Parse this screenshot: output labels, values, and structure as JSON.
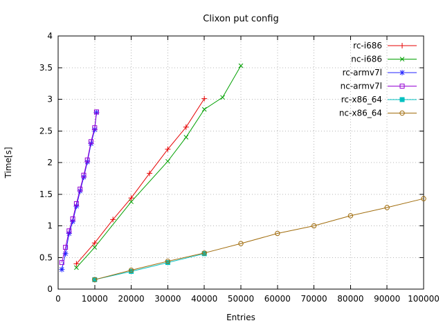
{
  "chart_data": {
    "type": "line",
    "title": "Clixon put config",
    "xlabel": "Entries",
    "ylabel": "Time[s]",
    "xlim": [
      0,
      100000
    ],
    "ylim": [
      0,
      4
    ],
    "x_ticks": [
      0,
      10000,
      20000,
      30000,
      40000,
      50000,
      60000,
      70000,
      80000,
      90000,
      100000
    ],
    "y_ticks": [
      0,
      0.5,
      1,
      1.5,
      2,
      2.5,
      3,
      3.5,
      4
    ],
    "grid": true,
    "legend_position": "top-right-inside",
    "series": [
      {
        "name": "rc-i686",
        "color": "#e60000",
        "marker": "plus",
        "x": [
          5000,
          10000,
          15000,
          20000,
          25000,
          30000,
          35000,
          40000
        ],
        "y": [
          0.4,
          0.73,
          1.1,
          1.44,
          1.83,
          2.21,
          2.56,
          3.01
        ]
      },
      {
        "name": "nc-i686",
        "color": "#00a000",
        "marker": "cross",
        "x": [
          5000,
          10000,
          20000,
          30000,
          35000,
          40000,
          45000,
          50000
        ],
        "y": [
          0.34,
          0.66,
          1.38,
          2.02,
          2.4,
          2.84,
          3.03,
          3.53
        ]
      },
      {
        "name": "rc-armv7l",
        "color": "#2020ff",
        "marker": "asterisk",
        "x": [
          1000,
          2000,
          3000,
          4000,
          5000,
          6000,
          7000,
          8000,
          9000,
          10000,
          10500
        ],
        "y": [
          0.31,
          0.56,
          0.88,
          1.07,
          1.31,
          1.55,
          1.77,
          2.01,
          2.3,
          2.52,
          2.79
        ]
      },
      {
        "name": "nc-armv7l",
        "color": "#9400d3",
        "marker": "open-square",
        "x": [
          1000,
          2000,
          3000,
          4000,
          5000,
          6000,
          7000,
          8000,
          9000,
          10000,
          10500
        ],
        "y": [
          0.42,
          0.66,
          0.92,
          1.11,
          1.35,
          1.58,
          1.8,
          2.04,
          2.33,
          2.55,
          2.8
        ]
      },
      {
        "name": "rc-x86_64",
        "color": "#00c0c0",
        "marker": "filled-square",
        "x": [
          10000,
          20000,
          30000,
          40000
        ],
        "y": [
          0.15,
          0.28,
          0.42,
          0.56
        ]
      },
      {
        "name": "nc-x86_64",
        "color": "#a06b0a",
        "marker": "open-circle",
        "x": [
          10000,
          20000,
          30000,
          40000,
          50000,
          60000,
          70000,
          80000,
          90000,
          100000
        ],
        "y": [
          0.15,
          0.3,
          0.44,
          0.57,
          0.72,
          0.88,
          1.0,
          1.16,
          1.29,
          1.43
        ]
      }
    ]
  }
}
